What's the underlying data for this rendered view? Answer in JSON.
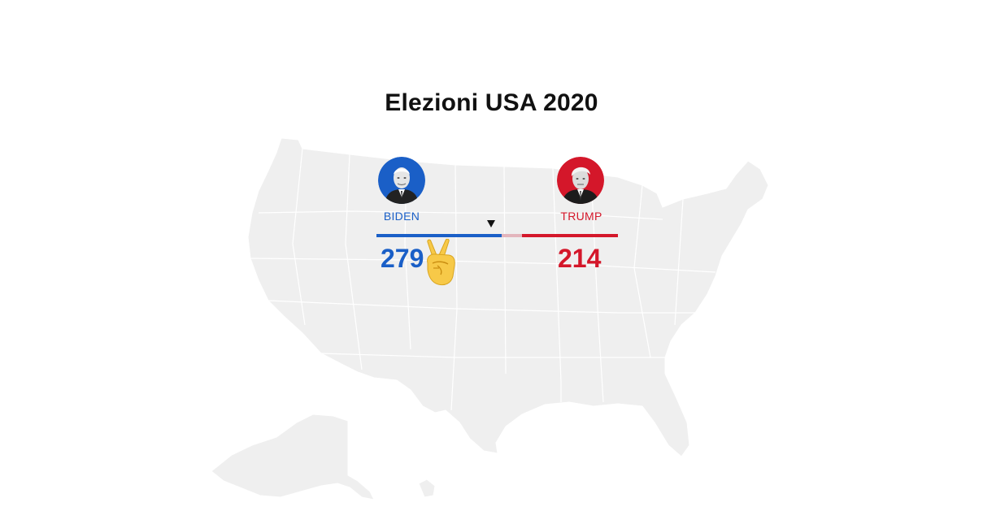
{
  "page": {
    "title": "Elezioni USA 2020"
  },
  "candidates": [
    {
      "name": "BIDEN",
      "electoral_votes": "279",
      "color": "#1a5fc7",
      "winner": true,
      "emoji": "victory-hand"
    },
    {
      "name": "TRUMP",
      "electoral_votes": "214",
      "color": "#d4172a",
      "winner": false
    }
  ],
  "progress": {
    "total_electoral_votes": 538,
    "needed_to_win": 270,
    "biden_share": 0.519,
    "trump_share": 0.398,
    "uncalled_color": "#e3b5bc"
  },
  "map": {
    "fill_color": "#efefef",
    "border_color": "#ffffff"
  }
}
